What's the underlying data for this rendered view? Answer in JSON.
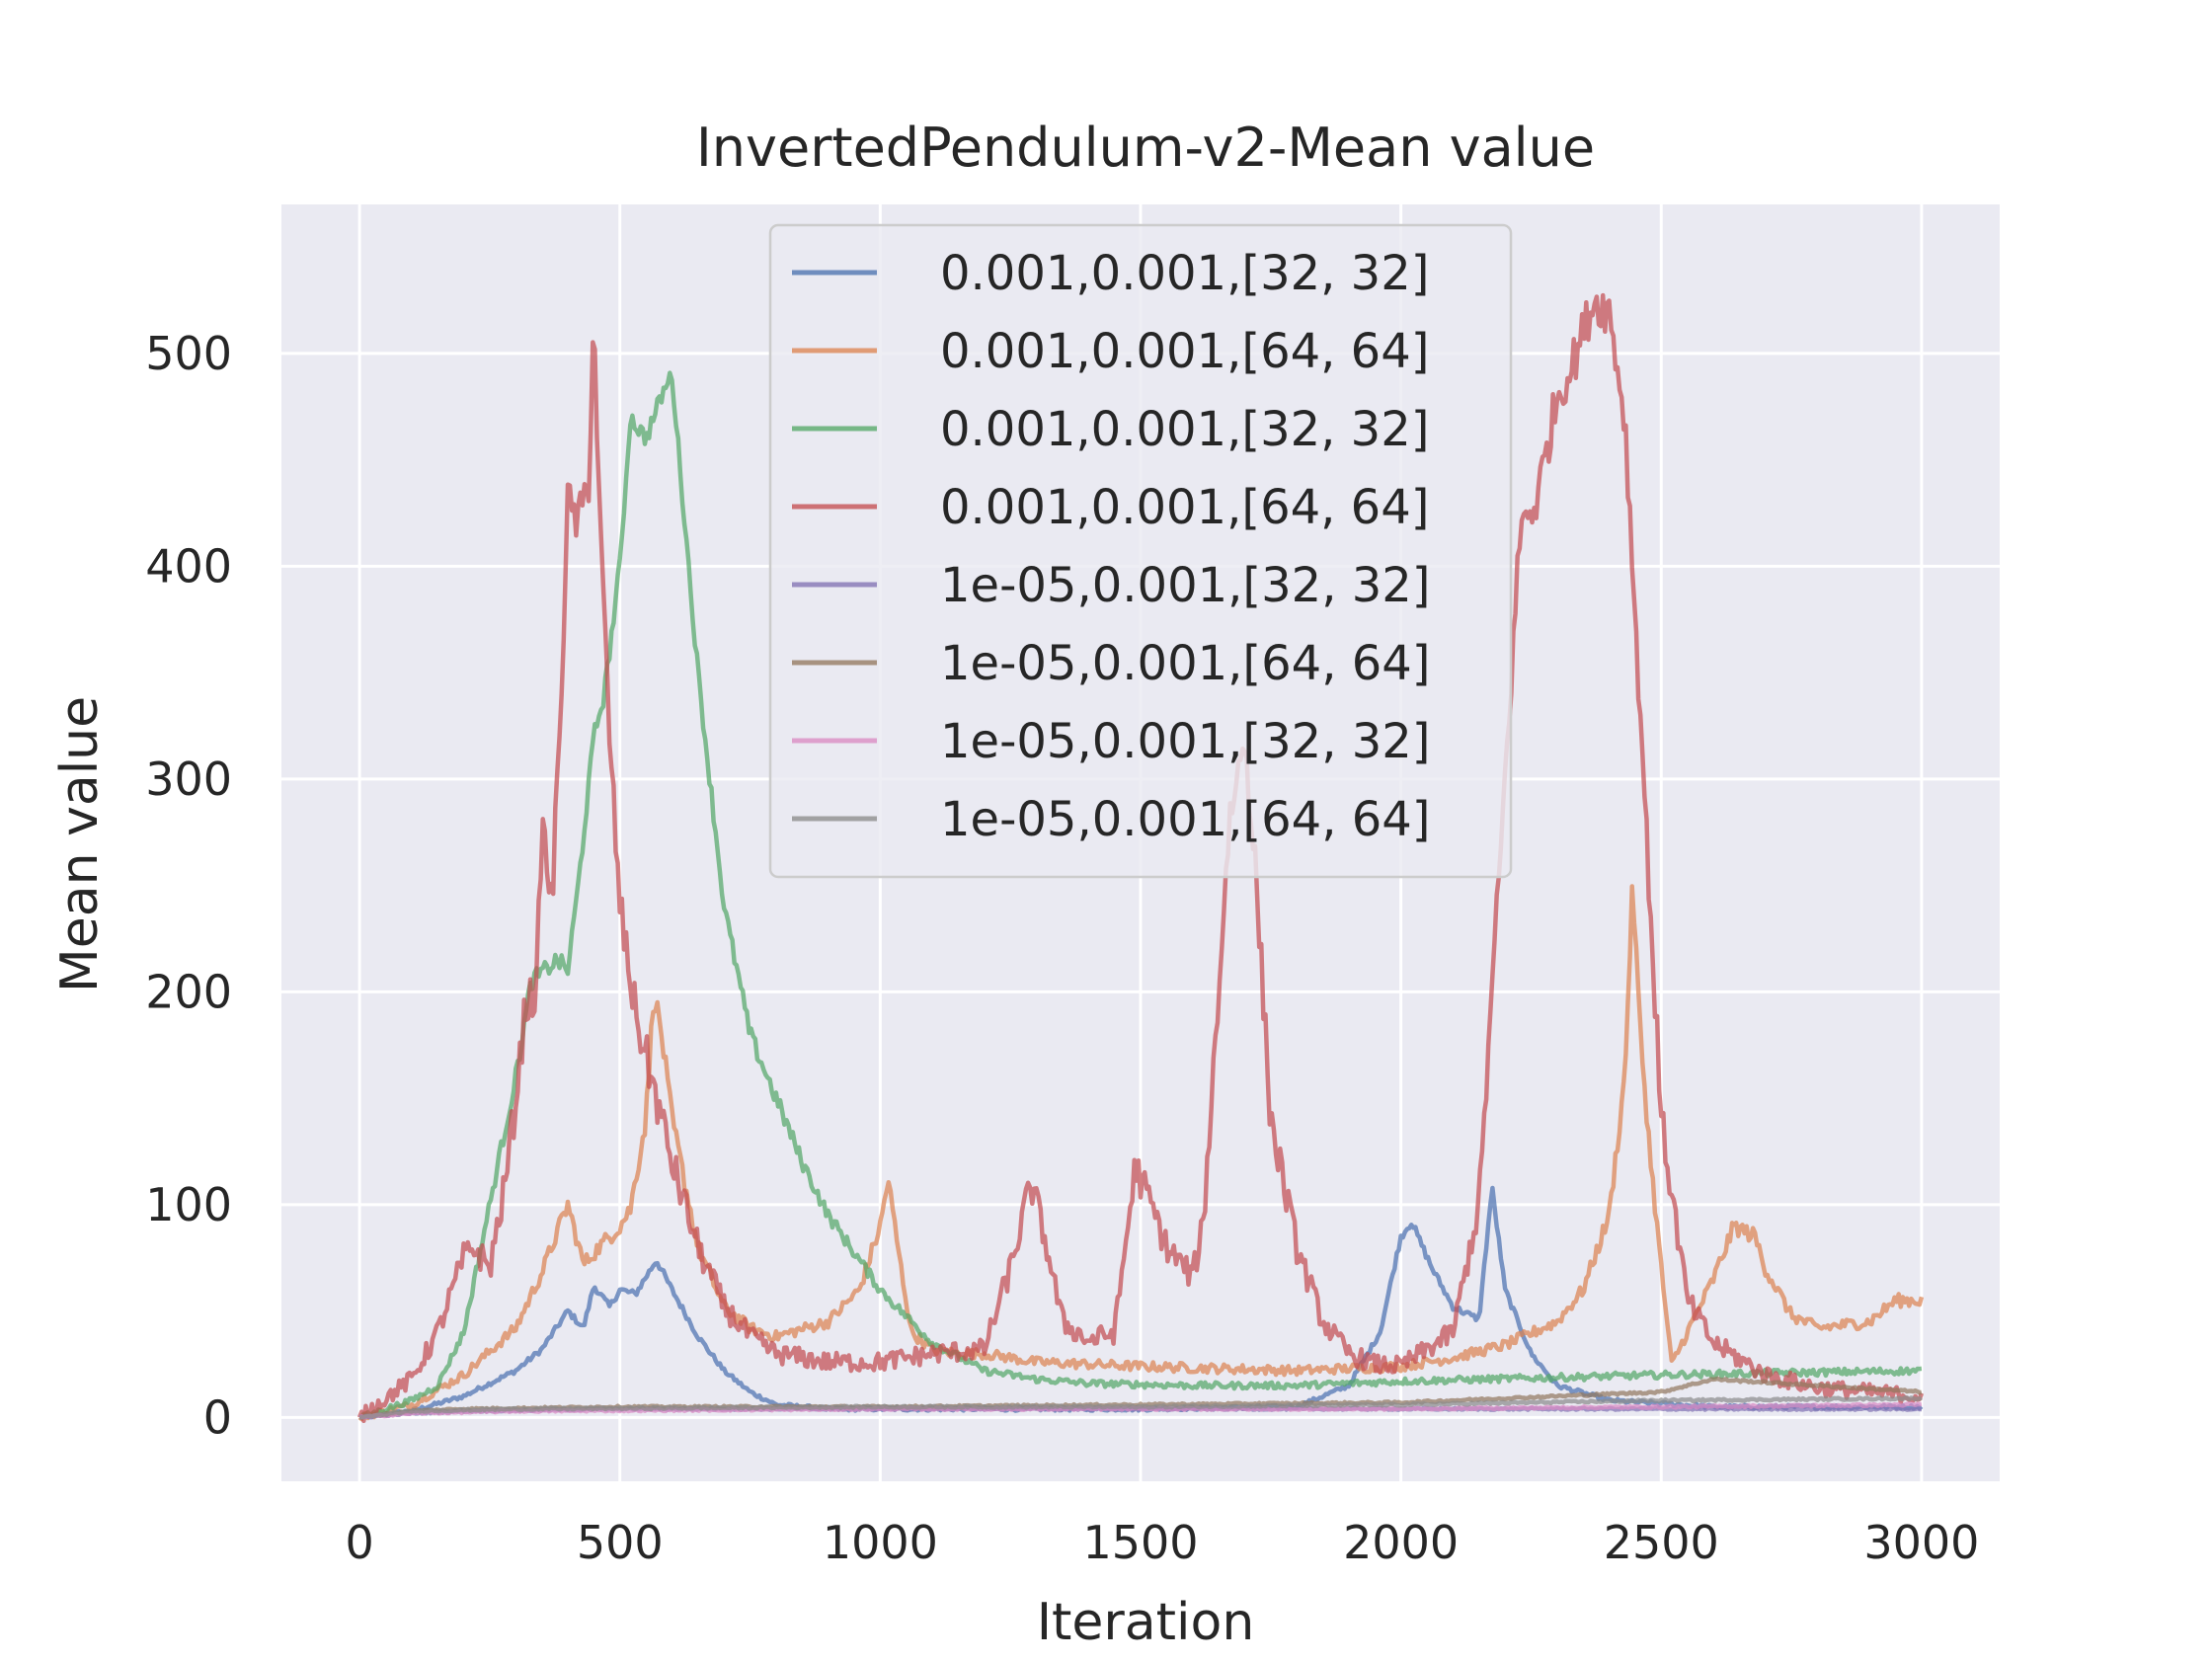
{
  "chart_data": {
    "type": "line",
    "title": "InvertedPendulum-v2-Mean value",
    "xlabel": "Iteration",
    "ylabel": "Mean value",
    "xlim": [
      -150,
      3150
    ],
    "ylim": [
      -30,
      570
    ],
    "xticks": [
      0,
      500,
      1000,
      1500,
      2000,
      2500,
      3000
    ],
    "xtick_labels": [
      "0",
      "500",
      "1000",
      "1500",
      "2000",
      "2500",
      "3000"
    ],
    "yticks": [
      0,
      100,
      200,
      300,
      400,
      500
    ],
    "ytick_labels": [
      "0",
      "100",
      "200",
      "300",
      "400",
      "500"
    ],
    "grid": true,
    "legend_position": "top-center",
    "series": [
      {
        "name": "0.001,0.001,[32, 32]",
        "color": "#4c72b0",
        "noise": 2,
        "points": [
          [
            0,
            0
          ],
          [
            100,
            3
          ],
          [
            200,
            10
          ],
          [
            300,
            22
          ],
          [
            350,
            32
          ],
          [
            400,
            50
          ],
          [
            430,
            42
          ],
          [
            450,
            62
          ],
          [
            480,
            52
          ],
          [
            500,
            60
          ],
          [
            530,
            58
          ],
          [
            570,
            74
          ],
          [
            600,
            60
          ],
          [
            650,
            38
          ],
          [
            700,
            22
          ],
          [
            750,
            12
          ],
          [
            800,
            6
          ],
          [
            900,
            4
          ],
          [
            1000,
            4
          ],
          [
            1500,
            4
          ],
          [
            1800,
            5
          ],
          [
            1900,
            15
          ],
          [
            1960,
            40
          ],
          [
            2000,
            85
          ],
          [
            2020,
            92
          ],
          [
            2060,
            70
          ],
          [
            2100,
            52
          ],
          [
            2150,
            46
          ],
          [
            2175,
            108
          ],
          [
            2200,
            60
          ],
          [
            2250,
            30
          ],
          [
            2300,
            15
          ],
          [
            2400,
            8
          ],
          [
            2600,
            5
          ],
          [
            3000,
            5
          ]
        ]
      },
      {
        "name": "0.001,0.001,[64, 64]",
        "color": "#dd8452",
        "noise": 4,
        "points": [
          [
            0,
            0
          ],
          [
            100,
            6
          ],
          [
            200,
            20
          ],
          [
            300,
            42
          ],
          [
            350,
            68
          ],
          [
            400,
            100
          ],
          [
            430,
            72
          ],
          [
            460,
            80
          ],
          [
            500,
            90
          ],
          [
            520,
            98
          ],
          [
            550,
            140
          ],
          [
            565,
            200
          ],
          [
            580,
            180
          ],
          [
            600,
            140
          ],
          [
            650,
            80
          ],
          [
            700,
            52
          ],
          [
            750,
            42
          ],
          [
            800,
            38
          ],
          [
            900,
            45
          ],
          [
            960,
            60
          ],
          [
            1000,
            90
          ],
          [
            1015,
            112
          ],
          [
            1040,
            70
          ],
          [
            1060,
            40
          ],
          [
            1100,
            32
          ],
          [
            1150,
            30
          ],
          [
            1200,
            30
          ],
          [
            1300,
            26
          ],
          [
            1500,
            24
          ],
          [
            1800,
            22
          ],
          [
            2000,
            24
          ],
          [
            2100,
            28
          ],
          [
            2200,
            34
          ],
          [
            2300,
            45
          ],
          [
            2350,
            60
          ],
          [
            2400,
            95
          ],
          [
            2430,
            160
          ],
          [
            2445,
            250
          ],
          [
            2460,
            180
          ],
          [
            2480,
            120
          ],
          [
            2500,
            70
          ],
          [
            2520,
            25
          ],
          [
            2550,
            40
          ],
          [
            2600,
            65
          ],
          [
            2640,
            90
          ],
          [
            2680,
            85
          ],
          [
            2700,
            70
          ],
          [
            2750,
            48
          ],
          [
            2800,
            42
          ],
          [
            2900,
            45
          ],
          [
            2950,
            55
          ],
          [
            3000,
            55
          ]
        ]
      },
      {
        "name": "0.001,0.001,[32, 32]",
        "color": "#55a868",
        "noise": 3,
        "points": [
          [
            0,
            0
          ],
          [
            100,
            8
          ],
          [
            150,
            15
          ],
          [
            200,
            40
          ],
          [
            250,
            100
          ],
          [
            300,
            160
          ],
          [
            330,
            205
          ],
          [
            380,
            215
          ],
          [
            400,
            210
          ],
          [
            420,
            250
          ],
          [
            450,
            320
          ],
          [
            470,
            340
          ],
          [
            500,
            400
          ],
          [
            520,
            470
          ],
          [
            550,
            460
          ],
          [
            580,
            480
          ],
          [
            600,
            490
          ],
          [
            650,
            350
          ],
          [
            700,
            240
          ],
          [
            750,
            180
          ],
          [
            800,
            150
          ],
          [
            850,
            120
          ],
          [
            900,
            95
          ],
          [
            1000,
            60
          ],
          [
            1100,
            35
          ],
          [
            1200,
            22
          ],
          [
            1300,
            18
          ],
          [
            1400,
            16
          ],
          [
            1600,
            15
          ],
          [
            1800,
            15
          ],
          [
            2000,
            17
          ],
          [
            2500,
            20
          ],
          [
            3000,
            22
          ]
        ]
      },
      {
        "name": "0.001,0.001,[64, 64]",
        "color": "#c44e52",
        "noise": 8,
        "points": [
          [
            0,
            0
          ],
          [
            100,
            18
          ],
          [
            150,
            40
          ],
          [
            200,
            75
          ],
          [
            220,
            80
          ],
          [
            250,
            70
          ],
          [
            280,
            110
          ],
          [
            300,
            150
          ],
          [
            320,
            195
          ],
          [
            340,
            200
          ],
          [
            350,
            280
          ],
          [
            370,
            240
          ],
          [
            390,
            360
          ],
          [
            400,
            430
          ],
          [
            420,
            420
          ],
          [
            440,
            440
          ],
          [
            450,
            520
          ],
          [
            460,
            430
          ],
          [
            480,
            320
          ],
          [
            500,
            240
          ],
          [
            530,
            190
          ],
          [
            560,
            160
          ],
          [
            600,
            120
          ],
          [
            650,
            80
          ],
          [
            700,
            52
          ],
          [
            750,
            38
          ],
          [
            800,
            30
          ],
          [
            900,
            26
          ],
          [
            1000,
            26
          ],
          [
            1100,
            30
          ],
          [
            1200,
            32
          ],
          [
            1250,
            70
          ],
          [
            1290,
            110
          ],
          [
            1320,
            80
          ],
          [
            1350,
            45
          ],
          [
            1400,
            36
          ],
          [
            1450,
            40
          ],
          [
            1490,
            118
          ],
          [
            1520,
            100
          ],
          [
            1550,
            80
          ],
          [
            1600,
            66
          ],
          [
            1620,
            90
          ],
          [
            1650,
            200
          ],
          [
            1670,
            280
          ],
          [
            1700,
            320
          ],
          [
            1720,
            260
          ],
          [
            1750,
            140
          ],
          [
            1800,
            80
          ],
          [
            1850,
            45
          ],
          [
            1900,
            30
          ],
          [
            1950,
            25
          ],
          [
            2000,
            24
          ],
          [
            2100,
            40
          ],
          [
            2150,
            100
          ],
          [
            2200,
            300
          ],
          [
            2230,
            420
          ],
          [
            2260,
            430
          ],
          [
            2300,
            480
          ],
          [
            2330,
            495
          ],
          [
            2370,
            525
          ],
          [
            2400,
            520
          ],
          [
            2430,
            470
          ],
          [
            2460,
            330
          ],
          [
            2500,
            140
          ],
          [
            2550,
            55
          ],
          [
            2600,
            35
          ],
          [
            2700,
            20
          ],
          [
            2800,
            14
          ],
          [
            3000,
            10
          ]
        ]
      },
      {
        "name": "1e-05,0.001,[32, 32]",
        "color": "#8172b3",
        "noise": 1,
        "points": [
          [
            0,
            0
          ],
          [
            100,
            2
          ],
          [
            200,
            3
          ],
          [
            500,
            4
          ],
          [
            1000,
            4
          ],
          [
            1500,
            4
          ],
          [
            2000,
            4
          ],
          [
            2500,
            4
          ],
          [
            3000,
            4
          ]
        ]
      },
      {
        "name": "1e-05,0.001,[64, 64]",
        "color": "#937860",
        "noise": 1,
        "points": [
          [
            0,
            0
          ],
          [
            100,
            3
          ],
          [
            200,
            4
          ],
          [
            500,
            5
          ],
          [
            1000,
            5
          ],
          [
            1500,
            6
          ],
          [
            2000,
            7
          ],
          [
            2500,
            12
          ],
          [
            2600,
            18
          ],
          [
            2800,
            15
          ],
          [
            3000,
            12
          ]
        ]
      },
      {
        "name": "1e-05,0.001,[32, 32]",
        "color": "#da8bc3",
        "noise": 1,
        "points": [
          [
            0,
            0
          ],
          [
            100,
            2
          ],
          [
            300,
            3
          ],
          [
            1000,
            4
          ],
          [
            2000,
            4
          ],
          [
            2500,
            5
          ],
          [
            3000,
            6
          ]
        ]
      },
      {
        "name": "1e-05,0.001,[64, 64]",
        "color": "#8c8c8c",
        "noise": 1,
        "points": [
          [
            0,
            0
          ],
          [
            100,
            3
          ],
          [
            300,
            4
          ],
          [
            1000,
            5
          ],
          [
            1500,
            5
          ],
          [
            2000,
            6
          ],
          [
            2500,
            8
          ],
          [
            3000,
            9
          ]
        ]
      }
    ]
  }
}
